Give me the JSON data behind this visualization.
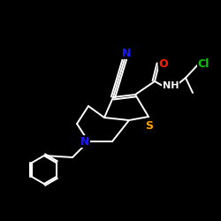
{
  "background_color": "#000000",
  "bond_color": "#ffffff",
  "N_color": "#1a1aff",
  "O_color": "#ff2000",
  "S_color": "#ffa500",
  "Cl_color": "#00cc00",
  "figsize": [
    2.5,
    2.5
  ],
  "dpi": 100,
  "xlim": [
    0,
    250
  ],
  "ylim": [
    0,
    250
  ]
}
